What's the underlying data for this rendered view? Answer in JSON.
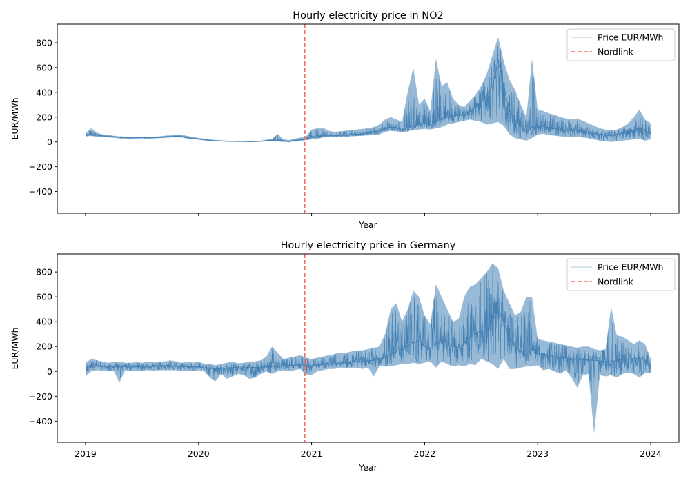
{
  "chart_data": [
    {
      "type": "line",
      "title": "Hourly electricity price in NO2",
      "xlabel": "Year",
      "ylabel": "EUR/MWh",
      "xlim": [
        2018.75,
        2024.25
      ],
      "ylim": [
        -575,
        950
      ],
      "xticks": [
        2019,
        2020,
        2021,
        2022,
        2023,
        2024
      ],
      "xtick_labels_visible": false,
      "yticks": [
        -400,
        -200,
        0,
        200,
        400,
        600,
        800
      ],
      "ytick_labels": [
        "−400",
        "−200",
        "0",
        "200",
        "400",
        "600",
        "800"
      ],
      "legend_position": "top-right",
      "legend": [
        "Price EUR/MWh",
        "Nordlink"
      ],
      "nordlink_x": 2020.94,
      "series": [
        {
          "name": "Price EUR/MWh",
          "color": "#4682b4",
          "x": [
            2019.0,
            2019.05,
            2019.1,
            2019.15,
            2019.2,
            2019.25,
            2019.3,
            2019.35,
            2019.4,
            2019.45,
            2019.5,
            2019.55,
            2019.6,
            2019.65,
            2019.7,
            2019.75,
            2019.8,
            2019.85,
            2019.9,
            2019.95,
            2020.0,
            2020.05,
            2020.1,
            2020.15,
            2020.2,
            2020.25,
            2020.3,
            2020.35,
            2020.4,
            2020.45,
            2020.5,
            2020.55,
            2020.6,
            2020.65,
            2020.7,
            2020.75,
            2020.8,
            2020.85,
            2020.9,
            2020.95,
            2021.0,
            2021.05,
            2021.1,
            2021.15,
            2021.2,
            2021.25,
            2021.3,
            2021.35,
            2021.4,
            2021.45,
            2021.5,
            2021.55,
            2021.6,
            2021.65,
            2021.7,
            2021.75,
            2021.8,
            2021.85,
            2021.9,
            2021.95,
            2022.0,
            2022.05,
            2022.1,
            2022.15,
            2022.2,
            2022.25,
            2022.3,
            2022.35,
            2022.4,
            2022.45,
            2022.5,
            2022.55,
            2022.6,
            2022.65,
            2022.7,
            2022.75,
            2022.8,
            2022.85,
            2022.9,
            2022.95,
            2023.0,
            2023.05,
            2023.1,
            2023.15,
            2023.2,
            2023.25,
            2023.3,
            2023.35,
            2023.4,
            2023.45,
            2023.5,
            2023.55,
            2023.6,
            2023.65,
            2023.7,
            2023.75,
            2023.8,
            2023.85,
            2023.9,
            2023.95,
            2024.0
          ],
          "low": [
            45,
            48,
            42,
            40,
            38,
            33,
            28,
            27,
            26,
            28,
            28,
            27,
            28,
            30,
            33,
            36,
            38,
            36,
            28,
            22,
            18,
            12,
            8,
            6,
            4,
            2,
            1,
            1,
            1,
            0,
            0,
            2,
            5,
            8,
            5,
            0,
            -2,
            5,
            10,
            15,
            20,
            25,
            35,
            40,
            38,
            40,
            40,
            45,
            48,
            50,
            52,
            55,
            60,
            80,
            90,
            85,
            75,
            85,
            95,
            100,
            105,
            100,
            110,
            120,
            140,
            150,
            160,
            170,
            180,
            170,
            160,
            140,
            150,
            160,
            130,
            60,
            30,
            20,
            10,
            30,
            60,
            65,
            55,
            50,
            45,
            40,
            35,
            40,
            35,
            30,
            20,
            10,
            5,
            0,
            5,
            10,
            15,
            20,
            25,
            10,
            20
          ],
          "mid": [
            55,
            60,
            55,
            50,
            45,
            42,
            38,
            35,
            32,
            33,
            35,
            33,
            35,
            37,
            40,
            43,
            45,
            44,
            36,
            28,
            24,
            18,
            13,
            10,
            8,
            6,
            4,
            3,
            3,
            2,
            3,
            6,
            10,
            15,
            12,
            8,
            5,
            12,
            18,
            22,
            35,
            42,
            50,
            55,
            50,
            52,
            55,
            58,
            62,
            65,
            70,
            80,
            90,
            110,
            120,
            115,
            100,
            115,
            130,
            140,
            150,
            140,
            160,
            180,
            200,
            210,
            215,
            220,
            250,
            280,
            320,
            380,
            450,
            650,
            450,
            250,
            180,
            130,
            70,
            120,
            130,
            125,
            115,
            105,
            100,
            95,
            90,
            95,
            85,
            80,
            70,
            60,
            55,
            50,
            60,
            70,
            80,
            90,
            110,
            90,
            70
          ],
          "high": [
            70,
            110,
            75,
            60,
            55,
            50,
            45,
            43,
            40,
            40,
            42,
            40,
            42,
            45,
            50,
            52,
            55,
            60,
            48,
            38,
            32,
            25,
            20,
            15,
            12,
            10,
            8,
            6,
            6,
            5,
            6,
            10,
            18,
            25,
            65,
            22,
            15,
            25,
            35,
            45,
            100,
            110,
            115,
            90,
            80,
            85,
            90,
            95,
            100,
            105,
            110,
            120,
            140,
            180,
            200,
            180,
            160,
            400,
            600,
            300,
            350,
            250,
            670,
            450,
            480,
            350,
            300,
            280,
            330,
            380,
            450,
            550,
            700,
            845,
            650,
            500,
            420,
            300,
            200,
            670,
            260,
            250,
            230,
            220,
            200,
            190,
            180,
            190,
            170,
            150,
            130,
            110,
            100,
            90,
            100,
            120,
            150,
            200,
            260,
            180,
            150
          ]
        }
      ]
    },
    {
      "type": "line",
      "title": "Hourly electricity price in Germany",
      "xlabel": "Year",
      "ylabel": "EUR/MWh",
      "xlim": [
        2018.75,
        2024.25
      ],
      "ylim": [
        -570,
        945
      ],
      "xticks": [
        2019,
        2020,
        2021,
        2022,
        2023,
        2024
      ],
      "xtick_labels": [
        "2019",
        "2020",
        "2021",
        "2022",
        "2023",
        "2024"
      ],
      "yticks": [
        -400,
        -200,
        0,
        200,
        400,
        600,
        800
      ],
      "ytick_labels": [
        "−400",
        "−200",
        "0",
        "200",
        "400",
        "600",
        "800"
      ],
      "legend_position": "top-right",
      "legend": [
        "Price EUR/MWh",
        "Nordlink"
      ],
      "nordlink_x": 2020.94,
      "series": [
        {
          "name": "Price EUR/MWh",
          "color": "#4682b4",
          "x": [
            2019.0,
            2019.05,
            2019.1,
            2019.15,
            2019.2,
            2019.25,
            2019.3,
            2019.35,
            2019.4,
            2019.45,
            2019.5,
            2019.55,
            2019.6,
            2019.65,
            2019.7,
            2019.75,
            2019.8,
            2019.85,
            2019.9,
            2019.95,
            2020.0,
            2020.05,
            2020.1,
            2020.15,
            2020.2,
            2020.25,
            2020.3,
            2020.35,
            2020.4,
            2020.45,
            2020.5,
            2020.55,
            2020.6,
            2020.65,
            2020.7,
            2020.75,
            2020.8,
            2020.85,
            2020.9,
            2020.95,
            2021.0,
            2021.05,
            2021.1,
            2021.15,
            2021.2,
            2021.25,
            2021.3,
            2021.35,
            2021.4,
            2021.45,
            2021.5,
            2021.55,
            2021.6,
            2021.65,
            2021.7,
            2021.75,
            2021.8,
            2021.85,
            2021.9,
            2021.95,
            2022.0,
            2022.05,
            2022.1,
            2022.15,
            2022.2,
            2022.25,
            2022.3,
            2022.35,
            2022.4,
            2022.45,
            2022.5,
            2022.55,
            2022.6,
            2022.65,
            2022.7,
            2022.75,
            2022.8,
            2022.85,
            2022.9,
            2022.95,
            2023.0,
            2023.05,
            2023.1,
            2023.15,
            2023.2,
            2023.25,
            2023.3,
            2023.35,
            2023.4,
            2023.45,
            2023.5,
            2023.55,
            2023.6,
            2023.65,
            2023.7,
            2023.75,
            2023.8,
            2023.85,
            2023.9,
            2023.95,
            2024.0
          ],
          "low": [
            -40,
            0,
            10,
            5,
            0,
            5,
            -90,
            10,
            0,
            5,
            5,
            10,
            5,
            10,
            10,
            10,
            10,
            0,
            5,
            0,
            10,
            0,
            -50,
            -80,
            -20,
            -60,
            -40,
            -20,
            -30,
            -60,
            -50,
            -20,
            0,
            -20,
            0,
            10,
            0,
            10,
            20,
            -30,
            -30,
            0,
            10,
            20,
            20,
            30,
            30,
            30,
            30,
            20,
            30,
            -40,
            40,
            40,
            40,
            50,
            60,
            60,
            70,
            60,
            70,
            80,
            30,
            80,
            60,
            40,
            50,
            40,
            60,
            50,
            100,
            80,
            60,
            20,
            100,
            20,
            20,
            30,
            40,
            40,
            50,
            10,
            20,
            0,
            -20,
            10,
            -50,
            -130,
            -30,
            -20,
            -500,
            -30,
            -40,
            -30,
            -50,
            -20,
            -10,
            -20,
            -50,
            -10,
            -10
          ],
          "mid": [
            40,
            50,
            45,
            40,
            40,
            42,
            35,
            40,
            38,
            40,
            40,
            42,
            40,
            42,
            42,
            44,
            42,
            38,
            40,
            36,
            35,
            28,
            25,
            22,
            25,
            28,
            30,
            28,
            28,
            30,
            32,
            35,
            38,
            40,
            42,
            45,
            48,
            50,
            55,
            50,
            45,
            50,
            55,
            60,
            62,
            65,
            70,
            75,
            80,
            80,
            85,
            90,
            100,
            120,
            140,
            160,
            180,
            200,
            230,
            250,
            200,
            180,
            220,
            250,
            240,
            200,
            190,
            230,
            280,
            300,
            330,
            380,
            400,
            500,
            400,
            280,
            200,
            160,
            130,
            180,
            150,
            140,
            130,
            120,
            115,
            110,
            100,
            95,
            95,
            90,
            90,
            85,
            80,
            80,
            90,
            100,
            100,
            100,
            110,
            90,
            40
          ],
          "high": [
            70,
            100,
            90,
            80,
            70,
            75,
            80,
            70,
            70,
            75,
            70,
            80,
            75,
            80,
            80,
            90,
            80,
            70,
            80,
            70,
            80,
            60,
            60,
            50,
            60,
            70,
            80,
            65,
            70,
            80,
            80,
            90,
            120,
            200,
            150,
            100,
            110,
            120,
            130,
            110,
            100,
            110,
            120,
            130,
            140,
            150,
            150,
            160,
            170,
            170,
            180,
            190,
            200,
            300,
            500,
            550,
            400,
            500,
            650,
            600,
            450,
            380,
            700,
            600,
            500,
            400,
            420,
            600,
            680,
            700,
            750,
            800,
            870,
            830,
            650,
            550,
            450,
            480,
            600,
            600,
            260,
            250,
            240,
            230,
            220,
            210,
            200,
            190,
            200,
            200,
            180,
            170,
            180,
            520,
            290,
            280,
            250,
            220,
            250,
            220,
            100
          ]
        }
      ]
    }
  ]
}
